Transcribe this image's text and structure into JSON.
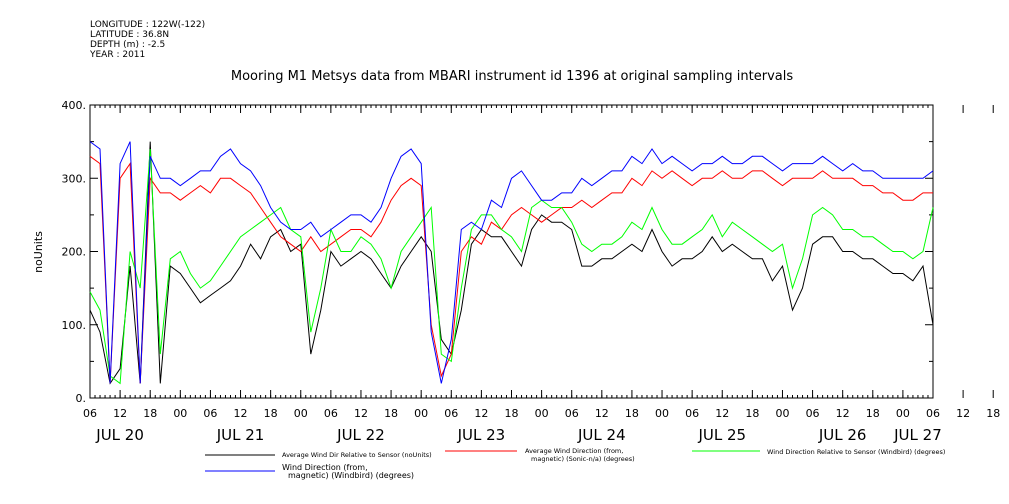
{
  "metadata": {
    "longitude": "LONGITUDE : 122W(-122)",
    "latitude": "LATITUDE : 36.8N",
    "depth": "DEPTH (m) : -2.5",
    "year": "YEAR : 2011"
  },
  "chart_data": {
    "type": "line",
    "title": "Mooring M1 Metsys data from MBARI instrument id 1396 at original sampling intervals",
    "ylabel": "noUnits",
    "xlabel": "",
    "ylim": [
      0,
      400
    ],
    "y_ticks": [
      "0.",
      "100.",
      "200.",
      "300.",
      "400."
    ],
    "x_hour_ticks": [
      "06",
      "12",
      "18",
      "00",
      "06",
      "12",
      "18",
      "00",
      "06",
      "12",
      "18",
      "00",
      "06",
      "12",
      "18",
      "00",
      "06",
      "12",
      "18",
      "00",
      "06",
      "12",
      "18",
      "00",
      "06",
      "12",
      "18",
      "00",
      "06",
      "12",
      "18",
      "00",
      "06",
      "12",
      "18",
      "00",
      "06",
      "12",
      "18",
      "00",
      "06",
      "12",
      "18",
      "00",
      "06"
    ],
    "x_day_labels": [
      "JUL 20",
      "JUL 21",
      "JUL 22",
      "JUL 23",
      "JUL 24",
      "JUL 25",
      "JUL 26",
      "JUL 27"
    ],
    "x_hours_range": [
      0,
      168
    ],
    "grid": false,
    "legend_position": "bottom",
    "colors": {
      "avg_wind_dir_rel": "#000000",
      "avg_wind_direction": "#ff0000",
      "wind_dir_rel_windbird": "#00ff00",
      "wind_direction_windbird": "#0000ff"
    },
    "series": [
      {
        "key": "avg_wind_dir_rel",
        "name": "Average Wind Dir Relative to Sensor (noUnits)",
        "x_hours": [
          0,
          2,
          4,
          6,
          8,
          10,
          12,
          14,
          16,
          18,
          20,
          22,
          24,
          26,
          28,
          30,
          32,
          34,
          36,
          38,
          40,
          42,
          44,
          46,
          48,
          50,
          52,
          54,
          56,
          58,
          60,
          62,
          64,
          66,
          68,
          70,
          72,
          74,
          76,
          78,
          80,
          82,
          84,
          86,
          88,
          90,
          92,
          94,
          96,
          98,
          100,
          102,
          104,
          106,
          108,
          110,
          112,
          114,
          116,
          118,
          120,
          122,
          124,
          126,
          128,
          130,
          132,
          134,
          136,
          138,
          140,
          142,
          144,
          146,
          148,
          150,
          152,
          154,
          156,
          158,
          160,
          162,
          164,
          166,
          168
        ],
        "values": [
          120,
          90,
          20,
          40,
          180,
          20,
          350,
          20,
          180,
          170,
          150,
          130,
          140,
          150,
          160,
          180,
          210,
          190,
          220,
          230,
          200,
          210,
          60,
          120,
          200,
          180,
          190,
          200,
          190,
          170,
          150,
          180,
          200,
          220,
          200,
          80,
          60,
          120,
          210,
          230,
          220,
          220,
          200,
          180,
          230,
          250,
          240,
          240,
          230,
          180,
          180,
          190,
          190,
          200,
          210,
          200,
          230,
          200,
          180,
          190,
          190,
          200,
          220,
          200,
          210,
          200,
          190,
          190,
          160,
          180,
          120,
          150,
          210,
          220,
          220,
          200,
          200,
          190,
          190,
          180,
          170,
          170,
          160,
          180,
          100
        ]
      },
      {
        "key": "avg_wind_direction",
        "name": "Average Wind Direction (from, magnetic) (Sonic-n/a) (degrees)",
        "x_hours": [
          0,
          2,
          4,
          6,
          8,
          10,
          12,
          14,
          16,
          18,
          20,
          22,
          24,
          26,
          28,
          30,
          32,
          34,
          36,
          38,
          40,
          42,
          44,
          46,
          48,
          50,
          52,
          54,
          56,
          58,
          60,
          62,
          64,
          66,
          68,
          70,
          72,
          74,
          76,
          78,
          80,
          82,
          84,
          86,
          88,
          90,
          92,
          94,
          96,
          98,
          100,
          102,
          104,
          106,
          108,
          110,
          112,
          114,
          116,
          118,
          120,
          122,
          124,
          126,
          128,
          130,
          132,
          134,
          136,
          138,
          140,
          142,
          144,
          146,
          148,
          150,
          152,
          154,
          156,
          158,
          160,
          162,
          164,
          166,
          168
        ],
        "values": [
          330,
          320,
          20,
          300,
          320,
          20,
          300,
          280,
          280,
          270,
          280,
          290,
          280,
          300,
          300,
          290,
          280,
          260,
          240,
          220,
          210,
          200,
          220,
          200,
          210,
          220,
          230,
          230,
          220,
          240,
          270,
          290,
          300,
          290,
          100,
          30,
          60,
          200,
          220,
          210,
          240,
          230,
          250,
          260,
          250,
          240,
          250,
          260,
          260,
          270,
          260,
          270,
          280,
          280,
          300,
          290,
          310,
          300,
          310,
          300,
          290,
          300,
          300,
          310,
          300,
          300,
          310,
          310,
          300,
          290,
          300,
          300,
          300,
          310,
          300,
          300,
          300,
          290,
          290,
          280,
          280,
          270,
          270,
          280,
          280
        ]
      },
      {
        "key": "wind_dir_rel_windbird",
        "name": "Wind Direction Relative to Sensor (Windbird) (degrees)",
        "x_hours": [
          0,
          2,
          4,
          6,
          8,
          10,
          12,
          14,
          16,
          18,
          20,
          22,
          24,
          26,
          28,
          30,
          32,
          34,
          36,
          38,
          40,
          42,
          44,
          46,
          48,
          50,
          52,
          54,
          56,
          58,
          60,
          62,
          64,
          66,
          68,
          70,
          72,
          74,
          76,
          78,
          80,
          82,
          84,
          86,
          88,
          90,
          92,
          94,
          96,
          98,
          100,
          102,
          104,
          106,
          108,
          110,
          112,
          114,
          116,
          118,
          120,
          122,
          124,
          126,
          128,
          130,
          132,
          134,
          136,
          138,
          140,
          142,
          144,
          146,
          148,
          150,
          152,
          154,
          156,
          158,
          160,
          162,
          164,
          166,
          168
        ],
        "values": [
          145,
          120,
          30,
          20,
          200,
          150,
          340,
          60,
          190,
          200,
          170,
          150,
          160,
          180,
          200,
          220,
          230,
          240,
          250,
          260,
          230,
          220,
          90,
          150,
          230,
          200,
          200,
          220,
          210,
          190,
          150,
          200,
          220,
          240,
          260,
          60,
          50,
          150,
          230,
          250,
          250,
          230,
          220,
          200,
          260,
          270,
          260,
          260,
          240,
          210,
          200,
          210,
          210,
          220,
          240,
          230,
          260,
          230,
          210,
          210,
          220,
          230,
          250,
          220,
          240,
          230,
          220,
          210,
          200,
          210,
          150,
          190,
          250,
          260,
          250,
          230,
          230,
          220,
          220,
          210,
          200,
          200,
          190,
          200,
          260
        ]
      },
      {
        "key": "wind_direction_windbird",
        "name": "Wind Direction (from, magnetic) (Windbird) (degrees)",
        "x_hours": [
          0,
          2,
          4,
          6,
          8,
          10,
          12,
          14,
          16,
          18,
          20,
          22,
          24,
          26,
          28,
          30,
          32,
          34,
          36,
          38,
          40,
          42,
          44,
          46,
          48,
          50,
          52,
          54,
          56,
          58,
          60,
          62,
          64,
          66,
          68,
          70,
          72,
          74,
          76,
          78,
          80,
          82,
          84,
          86,
          88,
          90,
          92,
          94,
          96,
          98,
          100,
          102,
          104,
          106,
          108,
          110,
          112,
          114,
          116,
          118,
          120,
          122,
          124,
          126,
          128,
          130,
          132,
          134,
          136,
          138,
          140,
          142,
          144,
          146,
          148,
          150,
          152,
          154,
          156,
          158,
          160,
          162,
          164,
          166,
          168
        ],
        "values": [
          350,
          340,
          20,
          320,
          350,
          20,
          330,
          300,
          300,
          290,
          300,
          310,
          310,
          330,
          340,
          320,
          310,
          290,
          260,
          240,
          230,
          230,
          240,
          220,
          230,
          240,
          250,
          250,
          240,
          260,
          300,
          330,
          340,
          320,
          90,
          20,
          80,
          230,
          240,
          230,
          270,
          260,
          300,
          310,
          290,
          270,
          270,
          280,
          280,
          300,
          290,
          300,
          310,
          310,
          330,
          320,
          340,
          320,
          330,
          320,
          310,
          320,
          320,
          330,
          320,
          320,
          330,
          330,
          320,
          310,
          320,
          320,
          320,
          330,
          320,
          310,
          320,
          310,
          310,
          300,
          300,
          300,
          300,
          300,
          310
        ]
      }
    ]
  }
}
